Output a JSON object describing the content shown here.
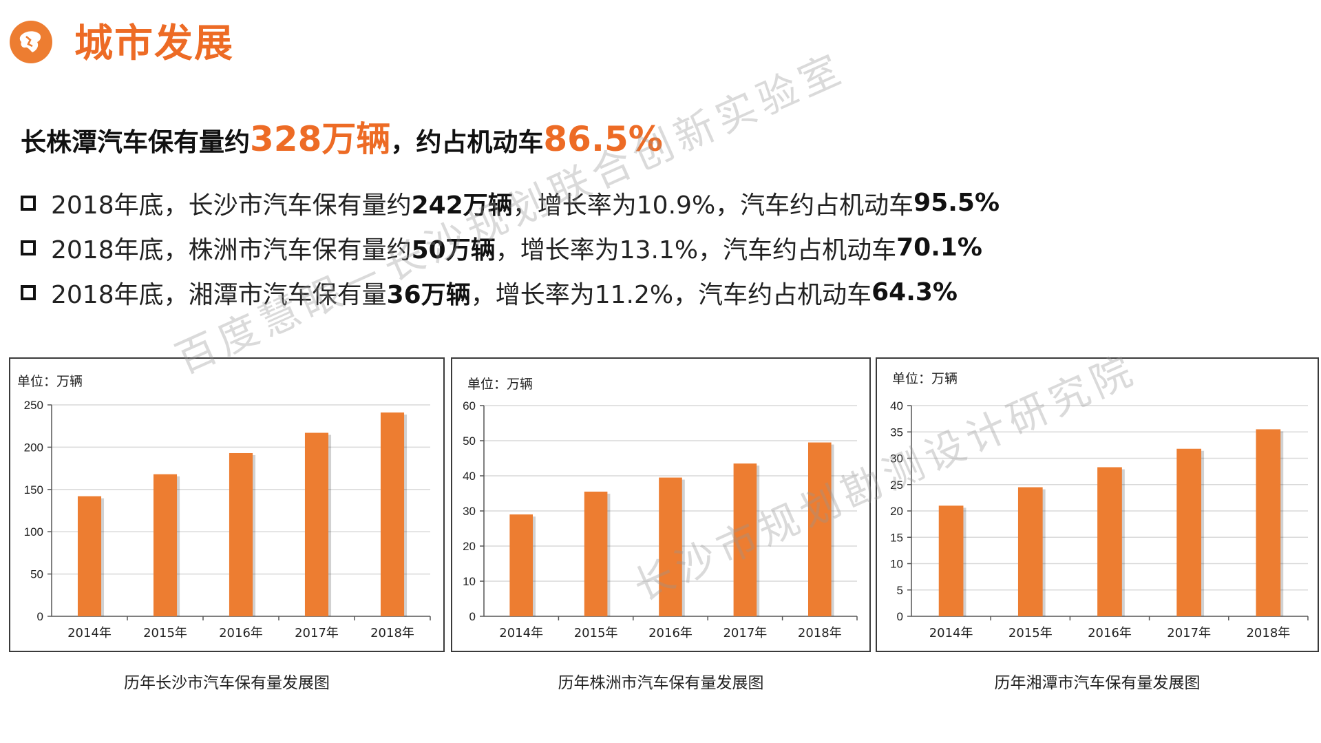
{
  "header": {
    "title": "城市发展"
  },
  "headline": {
    "prefix": "长株潭汽车保有量约",
    "value1": "328万辆",
    "middle": "，约占机动车",
    "value2": "86.5%"
  },
  "bullets": [
    {
      "text1": "2018年底，长沙市汽车保有量约",
      "bold1": "242万辆",
      "text2": "，增长率为10.9%，汽车约占机动车",
      "bold2": "95.5%"
    },
    {
      "text1": "2018年底，株洲市汽车保有量约",
      "bold1": "50万辆",
      "text2": "，增长率为13.1%，汽车约占机动车",
      "bold2": "70.1%"
    },
    {
      "text1": "2018年底，湘潭市汽车保有量",
      "bold1": "36万辆",
      "text2": "，增长率为11.2%，汽车约占机动车",
      "bold2": "64.3%"
    }
  ],
  "watermarks": [
    "百度慧眼－长沙规划联合创新实验室",
    "长沙市规划勘测设计研究院"
  ],
  "colors": {
    "accent": "#ED6B25",
    "bar": "#ED7D31"
  },
  "chart_data": [
    {
      "type": "bar",
      "unit_label": "单位：万辆",
      "caption": "历年长沙市汽车保有量发展图",
      "categories": [
        "2014年",
        "2015年",
        "2016年",
        "2017年",
        "2018年"
      ],
      "values": [
        142,
        168,
        193,
        217,
        241
      ],
      "ylim": [
        0,
        250
      ],
      "yticks": [
        0,
        50,
        100,
        150,
        200,
        250
      ],
      "grid": true
    },
    {
      "type": "bar",
      "unit_label": "单位：万辆",
      "caption": "历年株洲市汽车保有量发展图",
      "categories": [
        "2014年",
        "2015年",
        "2016年",
        "2017年",
        "2018年"
      ],
      "values": [
        29,
        35.5,
        39.5,
        43.5,
        49.5
      ],
      "ylim": [
        0,
        60
      ],
      "yticks": [
        0,
        10,
        20,
        30,
        40,
        50,
        60
      ],
      "grid": true
    },
    {
      "type": "bar",
      "unit_label": "单位：万辆",
      "caption": "历年湘潭市汽车保有量发展图",
      "categories": [
        "2014年",
        "2015年",
        "2016年",
        "2017年",
        "2018年"
      ],
      "values": [
        21,
        24.5,
        28.3,
        31.8,
        35.5
      ],
      "ylim": [
        0,
        40
      ],
      "yticks": [
        0,
        5,
        10,
        15,
        20,
        25,
        30,
        35,
        40
      ],
      "grid": true
    }
  ]
}
